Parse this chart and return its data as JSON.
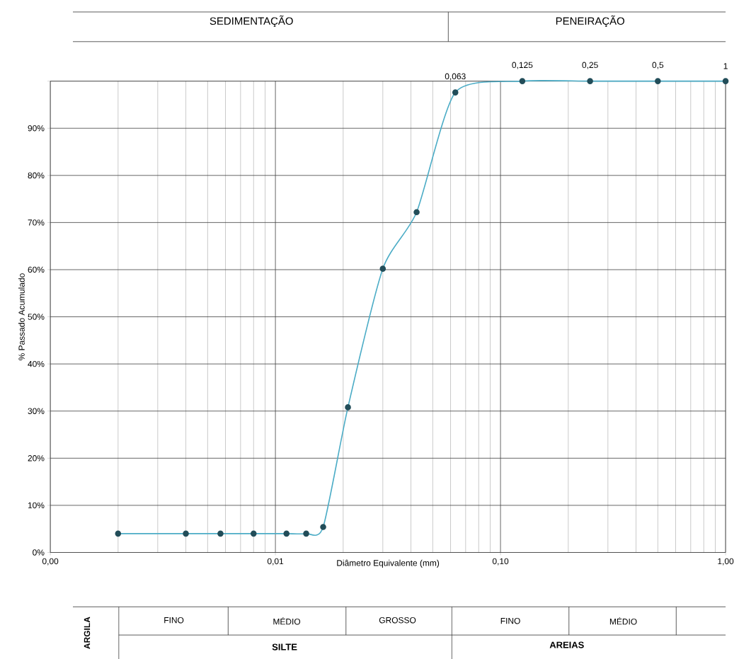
{
  "chart_data": {
    "type": "line",
    "xlabel": "Diâmetro Equivalente (mm)",
    "ylabel": "% Passado Acumulado",
    "x": [
      0.002,
      0.004,
      0.0057,
      0.008,
      0.0112,
      0.0137,
      0.0163,
      0.021,
      0.03,
      0.0424,
      0.063,
      0.125,
      0.25,
      0.5,
      1
    ],
    "series": [
      {
        "color": "#4bacc6",
        "values": [
          4,
          4,
          4,
          4,
          4,
          4,
          5.4,
          30.8,
          60.2,
          72.2,
          97.6,
          100,
          100,
          100,
          100
        ]
      }
    ],
    "log": "x",
    "grid": true,
    "marker": "circle",
    "line_style": "solid",
    "xlim": [
      0.001,
      1
    ],
    "ylim": [
      0,
      100
    ],
    "xticks": [
      {
        "value": 0.001,
        "label": "0,00"
      },
      {
        "value": 0.01,
        "label": "0,01"
      },
      {
        "value": 0.1,
        "label": "0,10"
      },
      {
        "value": 1,
        "label": "1,00"
      }
    ],
    "yticks": [
      {
        "value": 0,
        "label": "0%"
      },
      {
        "value": 10,
        "label": "10%"
      },
      {
        "value": 20,
        "label": "20%"
      },
      {
        "value": 30,
        "label": "30%"
      },
      {
        "value": 40,
        "label": "40%"
      },
      {
        "value": 50,
        "label": "50%"
      },
      {
        "value": 60,
        "label": "60%"
      },
      {
        "value": 70,
        "label": "70%"
      },
      {
        "value": 80,
        "label": "80%"
      },
      {
        "value": 90,
        "label": "90%"
      },
      {
        "value": 100,
        "label": null
      }
    ],
    "annotations": [
      "SEDIMENTAÇÃO",
      "PENEIRAÇÃO",
      "ARGILA",
      "FINO",
      "MÉDIO",
      "GROSSO",
      "FINO",
      "MÉDIO",
      "SILTE",
      "AREIAS",
      {
        "text": "0,063",
        "x": 0.063,
        "y": 97.6
      },
      {
        "text": "0,125",
        "x": 0.125,
        "y": 100
      },
      {
        "text": "0,25",
        "x": 0.25,
        "y": 100
      },
      {
        "text": "0,5",
        "x": 0.5,
        "y": 100
      },
      {
        "text": "1",
        "x": 1,
        "y": 100
      }
    ]
  }
}
